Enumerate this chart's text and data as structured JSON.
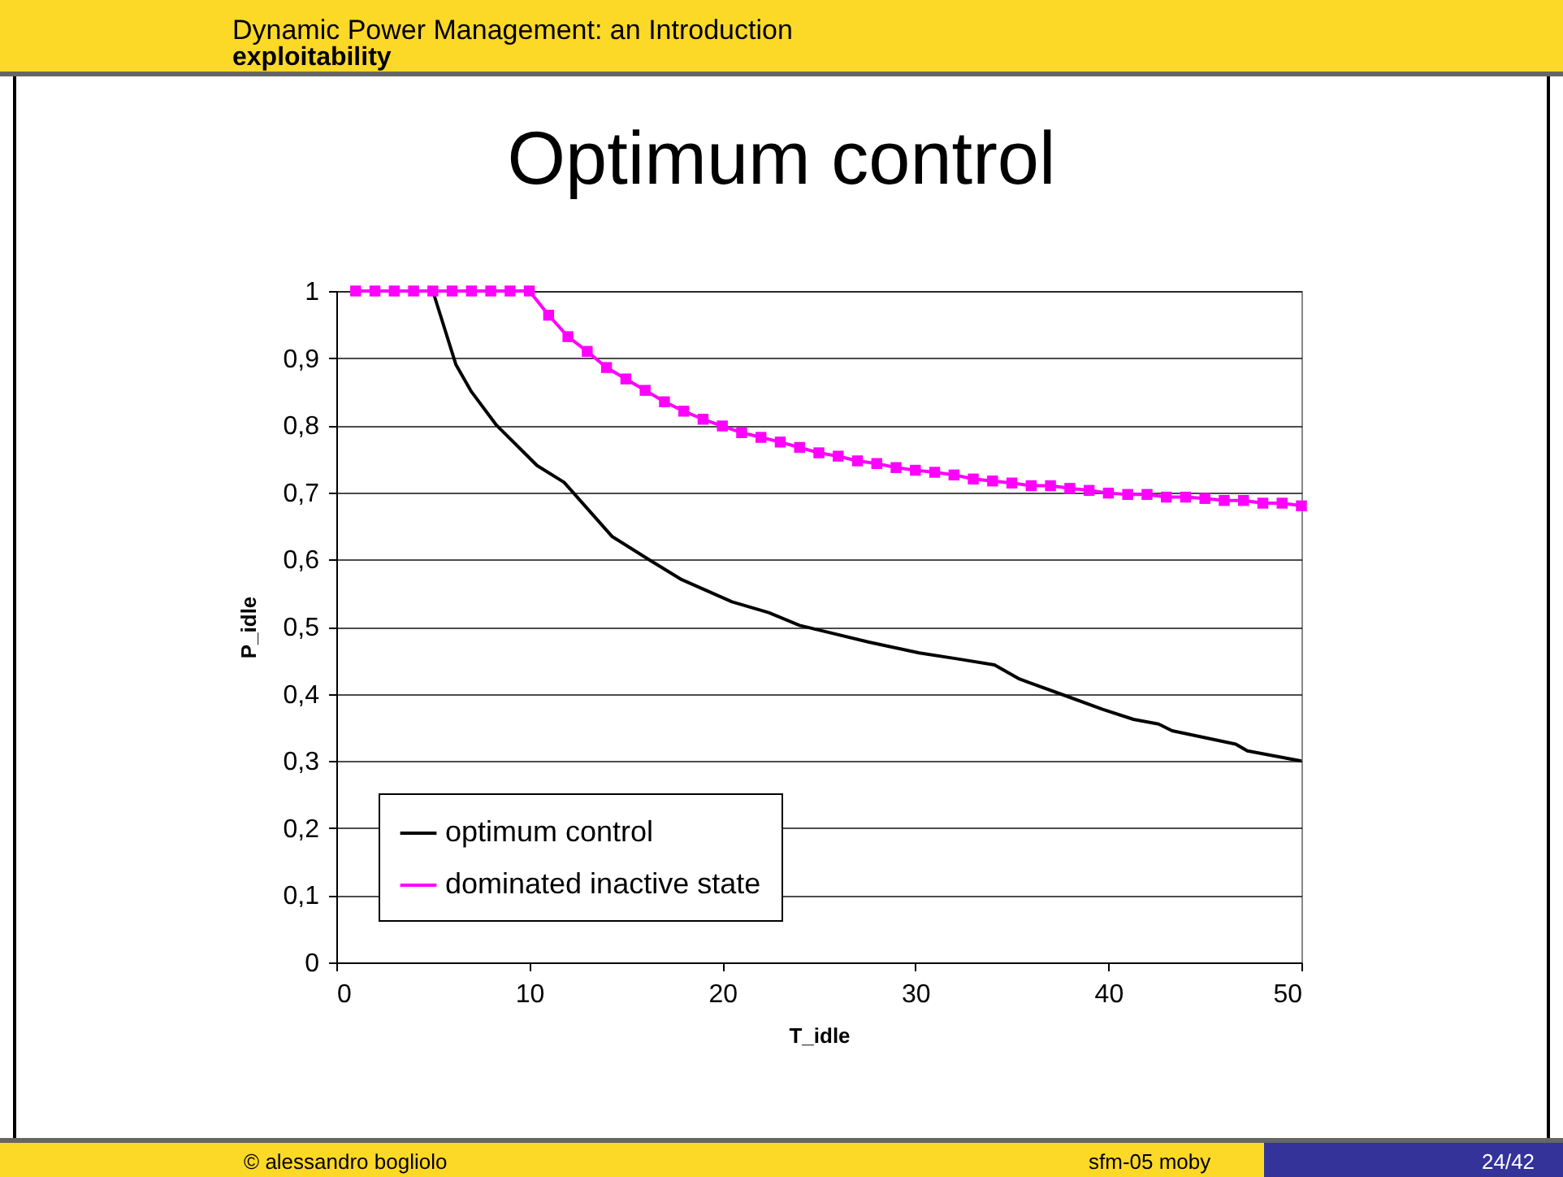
{
  "chart_data": {
    "type": "line",
    "title": "Optimum control",
    "xlabel": "T_idle",
    "ylabel": "P_idle",
    "annotations": [
      "Dynamic Power Management: an Introduction",
      "exploitability",
      "© alessandro bogliolo",
      "sfm-05 moby",
      "24/42"
    ],
    "xlim": [
      0,
      50
    ],
    "xticks": [
      0,
      10,
      20,
      30,
      40,
      50
    ],
    "ylim": [
      0,
      1
    ],
    "yticks": [
      0,
      {
        "value": 0.1,
        "label": "0,1"
      },
      {
        "value": 0.2,
        "label": "0,2"
      },
      {
        "value": 0.3,
        "label": "0,3"
      },
      {
        "value": 0.4,
        "label": "0,4"
      },
      {
        "value": 0.5,
        "label": "0,5"
      },
      {
        "value": 0.6,
        "label": "0,6"
      },
      {
        "value": 0.7,
        "label": "0,7"
      },
      {
        "value": 0.8,
        "label": "0,8"
      },
      {
        "value": 0.9,
        "label": "0,9"
      },
      1
    ],
    "grid": "y",
    "legend": "bottom left",
    "series": [
      {
        "name": "optimum control",
        "color": "#000000",
        "marker": "none",
        "x": [
          5,
          6.2,
          7,
          8.3,
          10.4,
          11.8,
          14.3,
          16.3,
          17.9,
          20.5,
          22.4,
          24,
          27.6,
          30.2,
          32.2,
          34.1,
          35.4,
          37.7,
          39.7,
          41.3,
          42.6,
          43.3,
          46.6,
          47.2,
          50
        ],
        "values": [
          1,
          0.89,
          0.85,
          0.8,
          0.74,
          0.715,
          0.634,
          0.598,
          0.57,
          0.537,
          0.521,
          0.502,
          0.477,
          0.461,
          0.452,
          0.443,
          0.422,
          0.398,
          0.377,
          0.362,
          0.355,
          0.345,
          0.325,
          0.315,
          0.3
        ]
      },
      {
        "name": "dominated inactive state",
        "color": "#ff00ff",
        "marker": "square",
        "x": [
          1,
          2,
          3,
          4,
          5,
          6,
          7,
          8,
          9,
          10,
          11,
          12,
          13,
          14,
          15,
          16,
          17,
          18,
          19,
          20,
          21,
          22,
          23,
          24,
          25,
          26,
          27,
          28,
          29,
          30,
          31,
          32,
          33,
          34,
          35,
          36,
          37,
          38,
          39,
          40,
          41,
          42,
          43,
          44,
          45,
          46,
          47,
          48,
          49,
          50
        ],
        "values": [
          1,
          1,
          1,
          1,
          1,
          1,
          1,
          1,
          1,
          1,
          0.964,
          0.932,
          0.91,
          0.886,
          0.869,
          0.852,
          0.835,
          0.821,
          0.809,
          0.799,
          0.789,
          0.782,
          0.775,
          0.767,
          0.759,
          0.754,
          0.747,
          0.743,
          0.737,
          0.733,
          0.73,
          0.726,
          0.72,
          0.717,
          0.714,
          0.71,
          0.71,
          0.706,
          0.703,
          0.699,
          0.697,
          0.697,
          0.693,
          0.693,
          0.691,
          0.688,
          0.688,
          0.684,
          0.684,
          0.68
        ]
      }
    ]
  }
}
